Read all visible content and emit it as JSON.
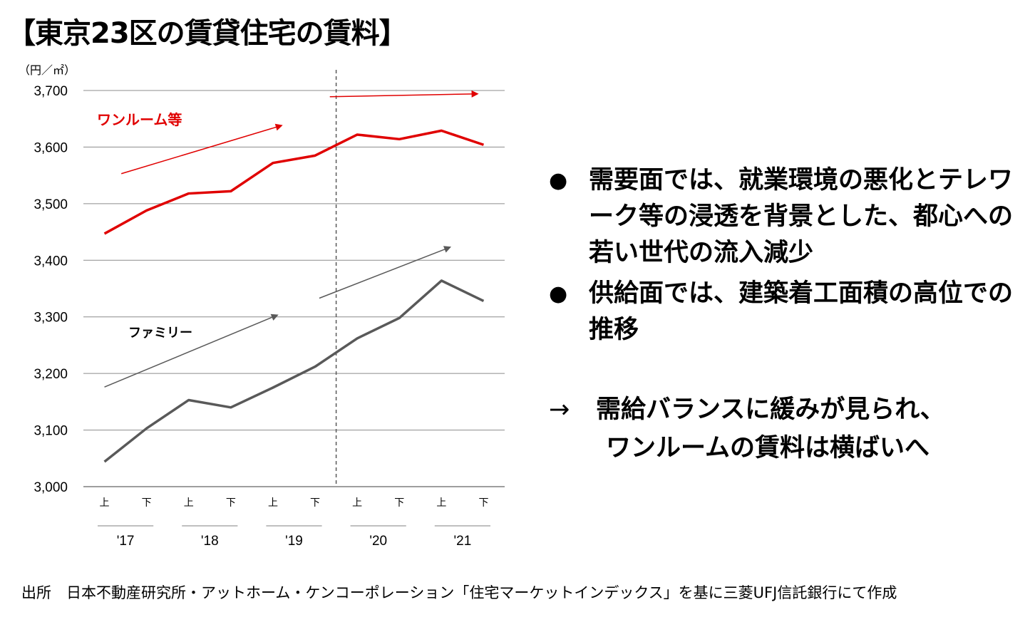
{
  "page": {
    "title": "【東京23区の賃貸住宅の賃料】",
    "source": "出所　日本不動産研究所・アットホーム・ケンコーポレーション「住宅マーケットインデックス」を基に三菱UFJ信託銀行にて作成"
  },
  "bullets": [
    "需要面では、就業環境の悪化とテレワーク等の浸透を背景とした、都心への若い世代の流入減少",
    "供給面では、建築着工面積の高位での推移"
  ],
  "bullet_symbol": "●",
  "conclusion": {
    "arrow": "→",
    "line1": "需給バランスに緩みが見られ、",
    "line2": "ワンルームの賃料は横ばいへ"
  },
  "chart_data": {
    "type": "line",
    "unit_label": "（円／㎡）",
    "ylim": [
      3000,
      3700
    ],
    "yticks": [
      3000,
      3100,
      3200,
      3300,
      3400,
      3500,
      3600,
      3700
    ],
    "ytick_labels": [
      "3,000",
      "3,100",
      "3,200",
      "3,300",
      "3,400",
      "3,500",
      "3,600",
      "3,700"
    ],
    "categories": [
      "上",
      "下",
      "上",
      "下",
      "上",
      "下",
      "上",
      "下",
      "上",
      "下"
    ],
    "year_labels": [
      "'17",
      "'18",
      "'19",
      "'20",
      "'21"
    ],
    "divider_after_index": 5,
    "grid": true,
    "series": [
      {
        "name": "ワンルーム等",
        "color": "#e00000",
        "values": [
          3447,
          3488,
          3518,
          3522,
          3572,
          3585,
          3622,
          3614,
          3629,
          3604
        ]
      },
      {
        "name": "ファミリー",
        "color": "#595959",
        "values": [
          3044,
          3103,
          3153,
          3140,
          3175,
          3212,
          3262,
          3298,
          3364,
          3328
        ]
      }
    ]
  }
}
